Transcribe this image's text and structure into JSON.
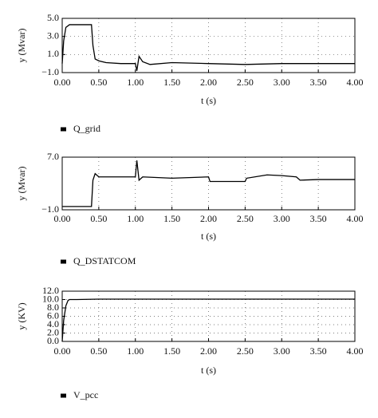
{
  "chart_data": [
    {
      "type": "line",
      "xlabel": "t (s)",
      "ylabel": "y (Mvar)",
      "x": [
        0,
        0.02,
        0.05,
        0.1,
        0.4,
        0.42,
        0.45,
        0.5,
        0.6,
        0.8,
        1.0,
        1.02,
        1.05,
        1.1,
        1.2,
        1.5,
        2.0,
        2.5,
        3.0,
        3.5,
        4.0
      ],
      "series": [
        {
          "name": "Q_grid",
          "color": "#000000",
          "values": [
            0,
            2.5,
            4.0,
            4.3,
            4.3,
            2.0,
            0.5,
            0.3,
            0.1,
            0,
            0,
            -0.8,
            0.8,
            0.2,
            -0.1,
            0.1,
            0,
            -0.1,
            0,
            0,
            0
          ]
        }
      ],
      "xlim": [
        0,
        4
      ],
      "ylim": [
        -1,
        5
      ],
      "xticks": [
        {
          "value": 0,
          "label": "0.00"
        },
        {
          "value": 0.5,
          "label": "0.50"
        },
        {
          "value": 1,
          "label": "1.00"
        },
        {
          "value": 1.5,
          "label": "1.50"
        },
        {
          "value": 2,
          "label": "2.00"
        },
        {
          "value": 2.5,
          "label": "2.50"
        },
        {
          "value": 3,
          "label": "3.00"
        },
        {
          "value": 3.5,
          "label": "3.50"
        },
        {
          "value": 4,
          "label": "4.00"
        }
      ],
      "yticks": [
        {
          "value": 5,
          "label": "5.0"
        },
        {
          "value": 3,
          "label": "3.0"
        },
        {
          "value": 1,
          "label": "1.0"
        },
        {
          "value": -1,
          "label": "−1.0"
        }
      ],
      "grid": true,
      "legend": "below"
    },
    {
      "type": "line",
      "xlabel": "t (s)",
      "ylabel": "y (Mvar)",
      "x": [
        0,
        0.4,
        0.42,
        0.45,
        0.5,
        1.0,
        1.02,
        1.05,
        1.1,
        1.5,
        2.0,
        2.02,
        2.5,
        2.52,
        2.8,
        3.0,
        3.2,
        3.25,
        3.5,
        4.0
      ],
      "series": [
        {
          "name": "Q_DSTATCOM",
          "color": "#000000",
          "values": [
            -0.5,
            -0.5,
            3.5,
            4.5,
            4.0,
            4.0,
            6.5,
            3.5,
            4.0,
            3.8,
            4.0,
            3.3,
            3.3,
            3.8,
            4.3,
            4.2,
            4.0,
            3.5,
            3.6,
            3.6
          ]
        }
      ],
      "xlim": [
        0,
        4
      ],
      "ylim": [
        -1,
        7
      ],
      "xticks": [
        {
          "value": 0,
          "label": "0.00"
        },
        {
          "value": 0.5,
          "label": "0.50"
        },
        {
          "value": 1,
          "label": "1.00"
        },
        {
          "value": 1.5,
          "label": "1.50"
        },
        {
          "value": 2,
          "label": "2.00"
        },
        {
          "value": 2.5,
          "label": "2.50"
        },
        {
          "value": 3,
          "label": "3.00"
        },
        {
          "value": 3.5,
          "label": "3.50"
        },
        {
          "value": 4,
          "label": "4.00"
        }
      ],
      "yticks": [
        {
          "value": 7,
          "label": "7.0"
        },
        {
          "value": -1,
          "label": "−1.0"
        }
      ],
      "grid": true,
      "legend": "below"
    },
    {
      "type": "line",
      "xlabel": "t (s)",
      "ylabel": "y (KV)",
      "x": [
        0,
        0.02,
        0.05,
        0.08,
        0.1,
        0.2,
        0.5,
        2.5,
        4.0
      ],
      "series": [
        {
          "name": "V_pcc",
          "color": "#000000",
          "values": [
            0,
            5,
            8.5,
            9.8,
            10,
            10,
            10.1,
            10.1,
            10.1
          ]
        }
      ],
      "xlim": [
        0,
        4
      ],
      "ylim": [
        0,
        12
      ],
      "xticks": [
        {
          "value": 0,
          "label": "0.00"
        },
        {
          "value": 0.5,
          "label": "0.50"
        },
        {
          "value": 1,
          "label": "1.00"
        },
        {
          "value": 1.5,
          "label": "1.50"
        },
        {
          "value": 2,
          "label": "2.00"
        },
        {
          "value": 2.5,
          "label": "2.50"
        },
        {
          "value": 3,
          "label": "3.00"
        },
        {
          "value": 3.5,
          "label": "3.50"
        },
        {
          "value": 4,
          "label": "4.00"
        }
      ],
      "yticks": [
        {
          "value": 12,
          "label": "12.0"
        },
        {
          "value": 10,
          "label": "10.0"
        },
        {
          "value": 8,
          "label": "8.0"
        },
        {
          "value": 6,
          "label": "6.0"
        },
        {
          "value": 4,
          "label": "4.0"
        },
        {
          "value": 2,
          "label": "2.0"
        },
        {
          "value": 0,
          "label": "0.0"
        }
      ],
      "grid": true,
      "legend": "below"
    }
  ]
}
